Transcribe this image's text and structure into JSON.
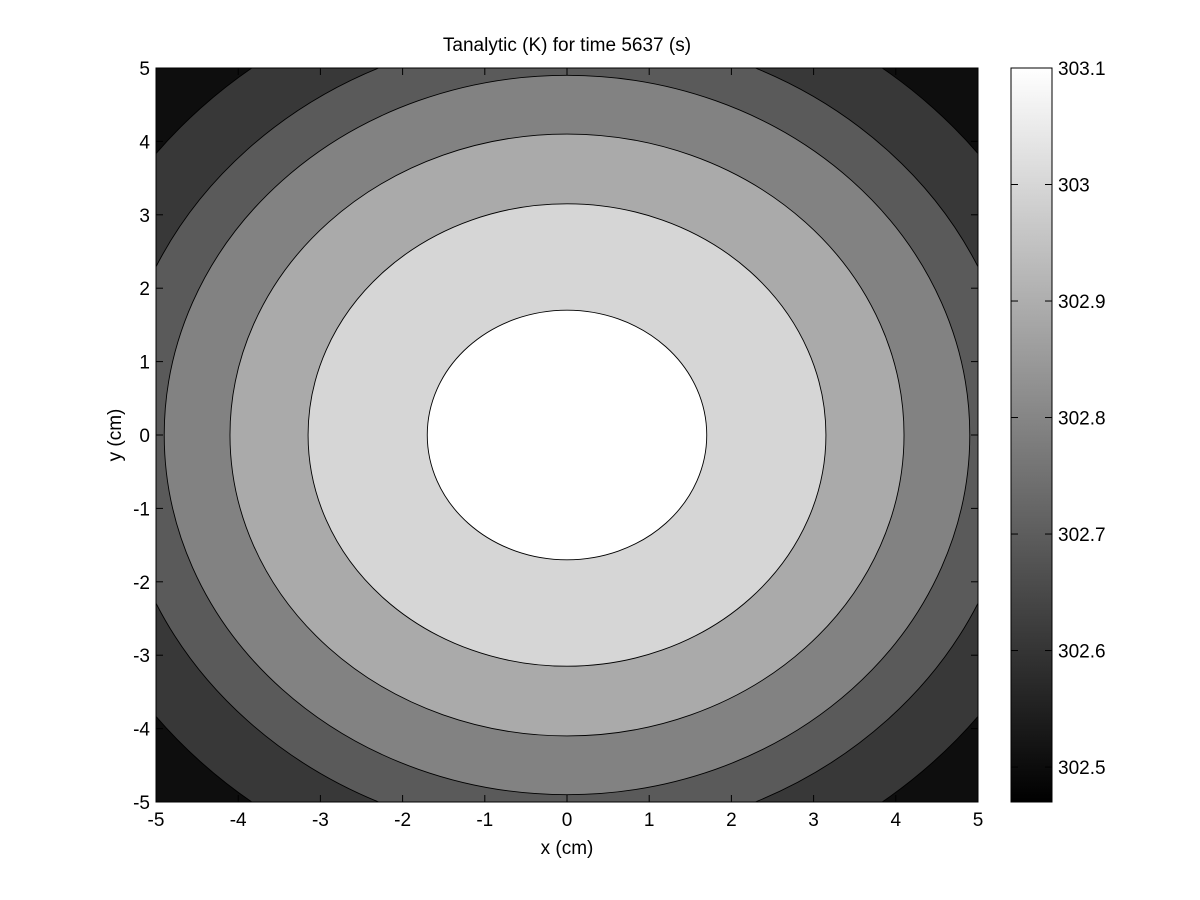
{
  "chart_data": {
    "type": "filled-contour",
    "title": "Tanalytic (K) for time 5637 (s)",
    "xlabel": "x (cm)",
    "ylabel": "y (cm)",
    "xlim": [
      -5,
      5
    ],
    "ylim": [
      -5,
      5
    ],
    "x_ticks": [
      -5,
      -4,
      -3,
      -2,
      -1,
      0,
      1,
      2,
      3,
      4,
      5
    ],
    "y_ticks": [
      -5,
      -4,
      -3,
      -2,
      -1,
      0,
      1,
      2,
      3,
      4,
      5
    ],
    "contour_radii_cm": [
      1.7,
      3.15,
      4.1,
      4.9,
      5.5,
      6.3
    ],
    "band_colors": [
      "#ffffff",
      "#d6d6d6",
      "#aaaaaa",
      "#828282",
      "#5a5a5a",
      "#383838",
      "#0e0e0e"
    ],
    "colorbar": {
      "range": [
        302.47,
        303.1
      ],
      "ticks": [
        "302.5",
        "302.6",
        "302.7",
        "302.8",
        "302.9",
        "303",
        "303.1"
      ],
      "tick_values": [
        302.5,
        302.6,
        302.7,
        302.8,
        302.9,
        303.0,
        303.1
      ]
    },
    "grid": false,
    "legend": "colorbar-right"
  }
}
